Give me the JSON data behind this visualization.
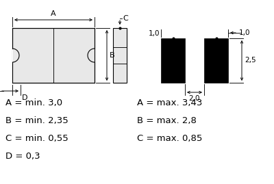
{
  "bg_color": "#ffffff",
  "text_color": "#000000",
  "line_color": "#000000",
  "fill_color": "#e8e8e8",
  "black_fill": "#000000",
  "labels_left": [
    "A = min. 3,0",
    "B = min. 2,35",
    "C = min. 0,55",
    "D = 0,3"
  ],
  "labels_right": [
    "A = max. 3,43",
    "B = max. 2,8",
    "C = max. 0,85",
    ""
  ],
  "font_size": 9.5
}
